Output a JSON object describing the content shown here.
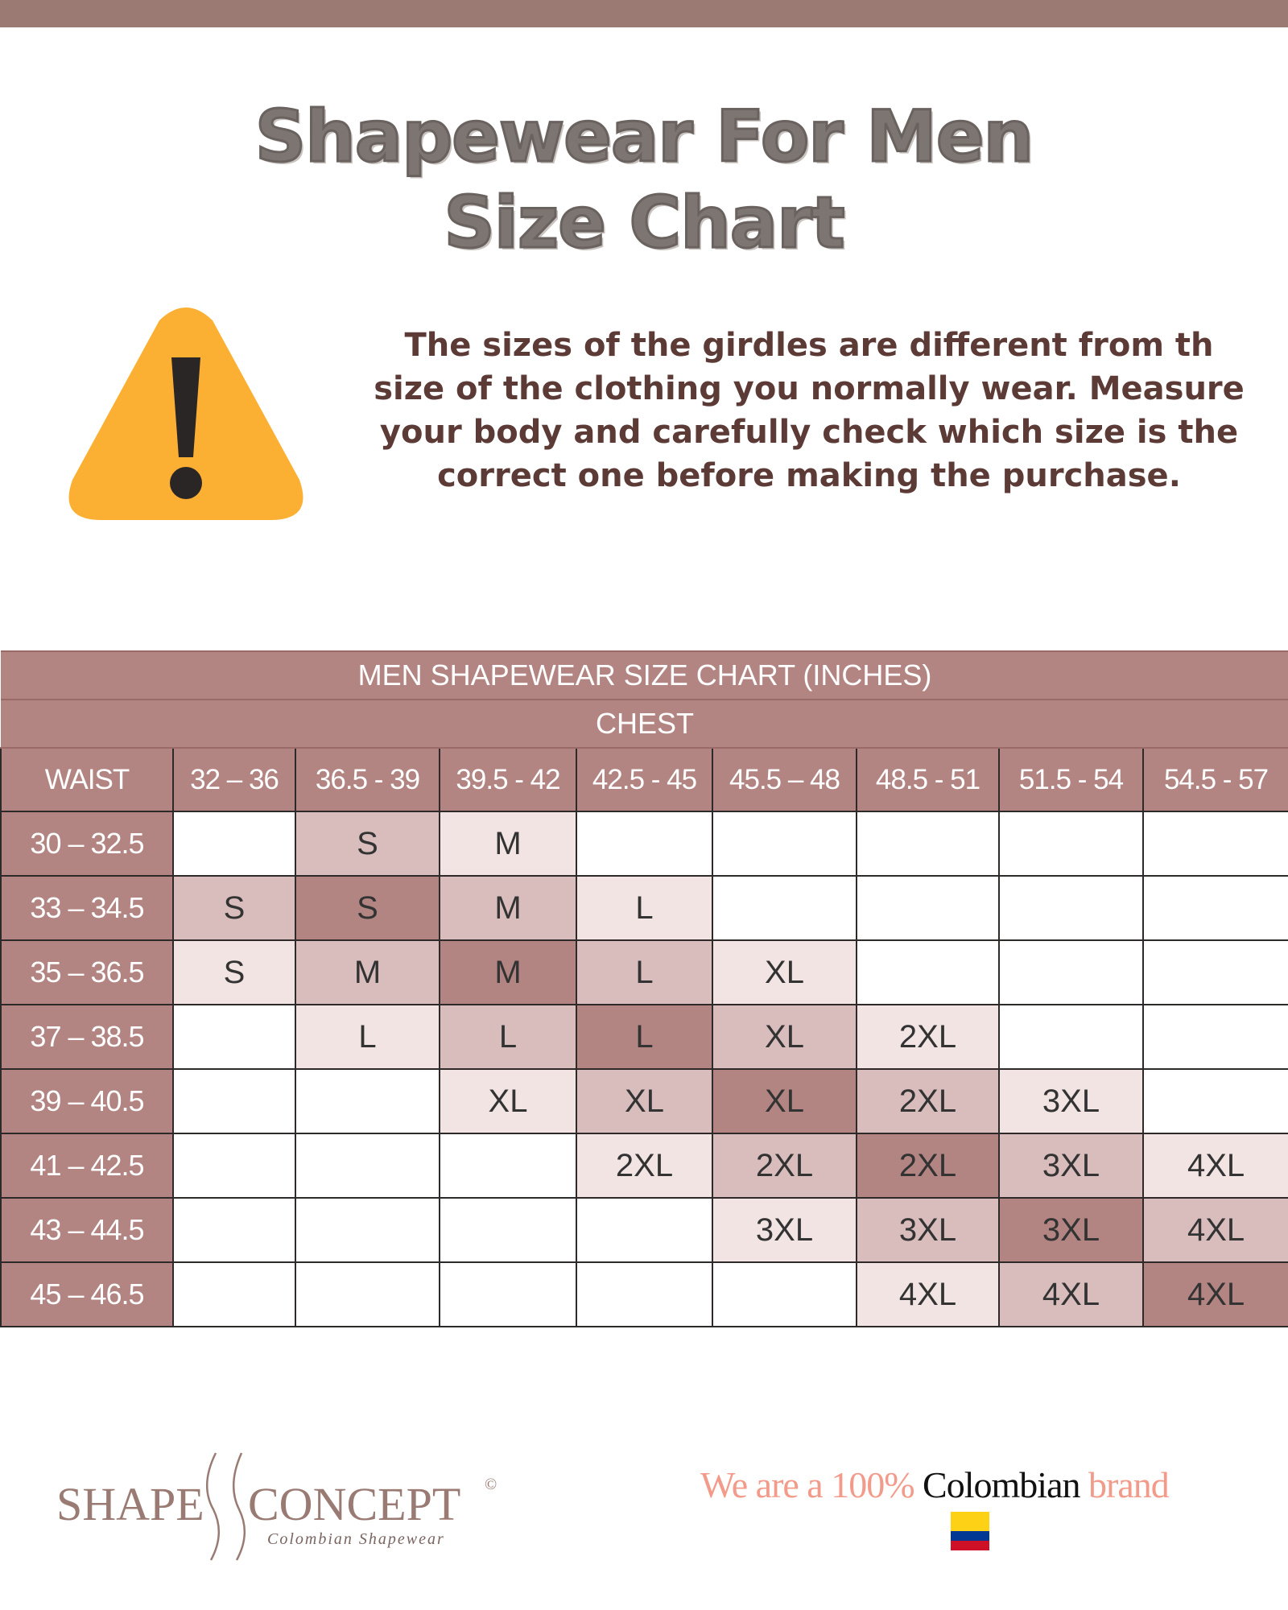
{
  "header": {
    "title_line1": "Shapewear For Men",
    "title_line2": "Size Chart"
  },
  "notice": {
    "icon": "warning-triangle-icon",
    "text": "The sizes of the girdles are different from th size of the clothing you normally wear. Measure your body and carefully check which size is the correct one before making the purchase."
  },
  "size_table": {
    "title": "MEN SHAPEWEAR SIZE CHART (INCHES)",
    "chest_label": "CHEST",
    "waist_label": "WAIST",
    "chest_columns": [
      "32 – 36",
      "36.5 - 39",
      "39.5 - 42",
      "42.5 - 45",
      "45.5 – 48",
      "48.5 - 51",
      "51.5 - 54",
      "54.5 - 57"
    ],
    "shade_colors": {
      "0": "#ffffff",
      "1": "#f2e4e3",
      "2": "#d9bcbc",
      "3": "#b38582"
    },
    "rows": [
      {
        "waist": "30 – 32.5",
        "sizes": [
          "",
          "S",
          "M",
          "",
          "",
          "",
          "",
          ""
        ],
        "shades": [
          0,
          2,
          1,
          0,
          0,
          0,
          0,
          0
        ]
      },
      {
        "waist": "33 – 34.5",
        "sizes": [
          "S",
          "S",
          "M",
          "L",
          "",
          "",
          "",
          ""
        ],
        "shades": [
          2,
          3,
          2,
          1,
          0,
          0,
          0,
          0
        ]
      },
      {
        "waist": "35 – 36.5",
        "sizes": [
          "S",
          "M",
          "M",
          "L",
          "XL",
          "",
          "",
          ""
        ],
        "shades": [
          1,
          2,
          3,
          2,
          1,
          0,
          0,
          0
        ]
      },
      {
        "waist": "37 – 38.5",
        "sizes": [
          "",
          "L",
          "L",
          "L",
          "XL",
          "2XL",
          "",
          ""
        ],
        "shades": [
          0,
          1,
          2,
          3,
          2,
          1,
          0,
          0
        ]
      },
      {
        "waist": "39 – 40.5",
        "sizes": [
          "",
          "",
          "XL",
          "XL",
          "XL",
          "2XL",
          "3XL",
          ""
        ],
        "shades": [
          0,
          0,
          1,
          2,
          3,
          2,
          1,
          0
        ]
      },
      {
        "waist": "41 – 42.5",
        "sizes": [
          "",
          "",
          "",
          "2XL",
          "2XL",
          "2XL",
          "3XL",
          "4XL"
        ],
        "shades": [
          0,
          0,
          0,
          1,
          2,
          3,
          2,
          1
        ]
      },
      {
        "waist": "43 – 44.5",
        "sizes": [
          "",
          "",
          "",
          "",
          "3XL",
          "3XL",
          "3XL",
          "4XL"
        ],
        "shades": [
          0,
          0,
          0,
          0,
          1,
          2,
          3,
          2
        ]
      },
      {
        "waist": "45 – 46.5",
        "sizes": [
          "",
          "",
          "",
          "",
          "",
          "4XL",
          "4XL",
          "4XL"
        ],
        "shades": [
          0,
          0,
          0,
          0,
          0,
          1,
          2,
          3
        ]
      }
    ]
  },
  "footer": {
    "logo_left": "SHAPE",
    "logo_right": "CONCEPT",
    "logo_mark": "©",
    "logo_tagline": "Colombian Shapewear",
    "slogan_part1": "We are a 100% ",
    "slogan_part2": "Colombian",
    "slogan_part3": " brand",
    "flag_icon": "colombia-flag-icon",
    "flag_colors": [
      "#fcd116",
      "#003893",
      "#ce1126"
    ]
  }
}
